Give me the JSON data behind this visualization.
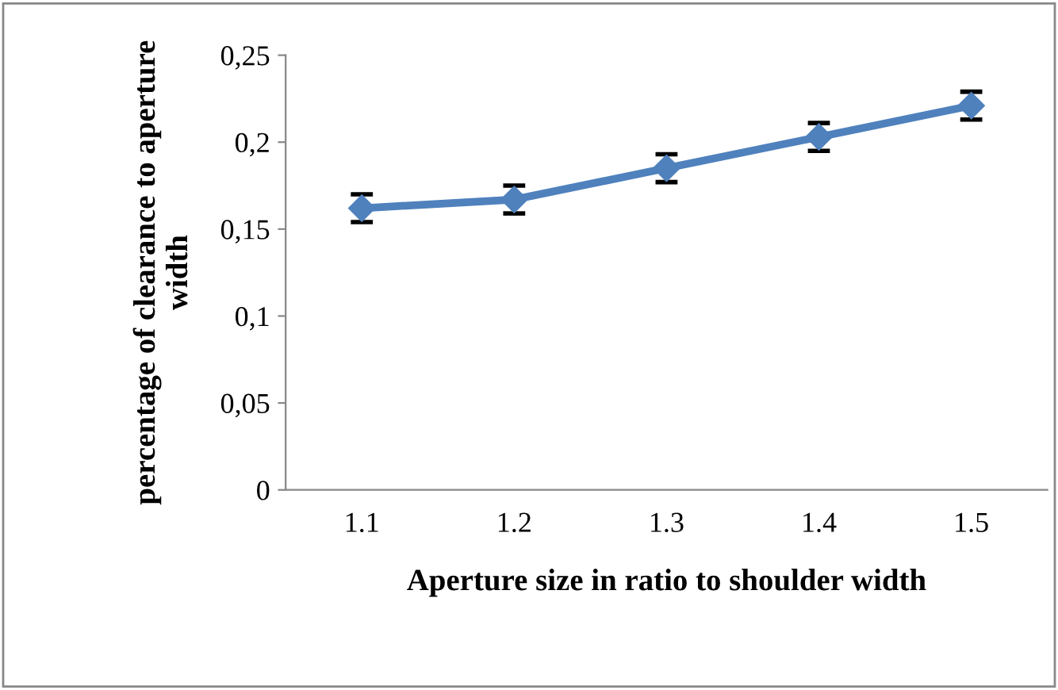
{
  "chart_data": {
    "type": "line",
    "xlabel": "Aperture size in ratio to shoulder width",
    "ylabel": "percentage of clearance to aperture width",
    "categories": [
      "1.1",
      "1.2",
      "1.3",
      "1.4",
      "1.5"
    ],
    "series": [
      {
        "color": "#4f81bd",
        "values": [
          0.162,
          0.167,
          0.185,
          0.203,
          0.221
        ],
        "errors": [
          0.008,
          0.008,
          0.008,
          0.008,
          0.008
        ]
      }
    ],
    "ylim": [
      0,
      0.25
    ],
    "yticks": [
      {
        "value": 0,
        "label": "0"
      },
      {
        "value": 0.05,
        "label": "0,05"
      },
      {
        "value": 0.1,
        "label": "0,1"
      },
      {
        "value": 0.15,
        "label": "0,15"
      },
      {
        "value": 0.2,
        "label": "0,2"
      },
      {
        "value": 0.25,
        "label": "0,25"
      }
    ],
    "marker": "diamond",
    "line_style": "solid",
    "grid": false,
    "legend": false
  }
}
